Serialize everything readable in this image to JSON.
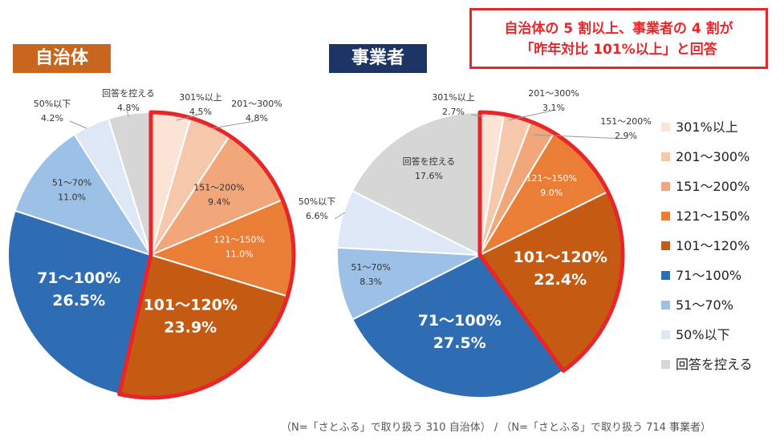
{
  "badges": {
    "left": "自治体",
    "right": "事業者"
  },
  "callout": {
    "line1": "自治体の 5 割以上、事業者の 4 割が",
    "line2": "「昨年対比 101%以上」と回答"
  },
  "footnote": "（N=「さとふる」で取り扱う 310 自治体）  /  （N=「さとふる」で取り扱う 714 事業者）",
  "legend": [
    {
      "label": "301%以上",
      "color": "#fbe3d6"
    },
    {
      "label": "201〜300%",
      "color": "#f6c8ab"
    },
    {
      "label": "151〜200%",
      "color": "#f1a77a"
    },
    {
      "label": "121〜150%",
      "color": "#ea7e36"
    },
    {
      "label": "101〜120%",
      "color": "#c55a12"
    },
    {
      "label": "71〜100%",
      "color": "#2e6cb4"
    },
    {
      "label": "51〜70%",
      "color": "#9dc0e6"
    },
    {
      "label": "50%以下",
      "color": "#dde7f5"
    },
    {
      "label": "回答を控える",
      "color": "#d6d6d6"
    }
  ],
  "chart_data": [
    {
      "type": "pie",
      "title": "自治体",
      "slices": [
        {
          "name": "301%以上",
          "value": 4.5,
          "label": "4.5%"
        },
        {
          "name": "201〜300%",
          "value": 4.8,
          "label": "4.8%"
        },
        {
          "name": "151〜200%",
          "value": 9.4,
          "label": "9.4%"
        },
        {
          "name": "121〜150%",
          "value": 11.0,
          "label": "11.0%"
        },
        {
          "name": "101〜120%",
          "value": 23.9,
          "label": "23.9%"
        },
        {
          "name": "71〜100%",
          "value": 26.5,
          "label": "26.5%"
        },
        {
          "name": "51〜70%",
          "value": 11.0,
          "label": "11.0%"
        },
        {
          "name": "50%以下",
          "value": 4.2,
          "label": "4.2%"
        },
        {
          "name": "回答を控える",
          "value": 4.8,
          "label": "4.8%"
        }
      ],
      "highlight_range": [
        "301%以上",
        "101〜120%"
      ]
    },
    {
      "type": "pie",
      "title": "事業者",
      "slices": [
        {
          "name": "301%以上",
          "value": 2.7,
          "label": "2.7%"
        },
        {
          "name": "201〜300%",
          "value": 3.1,
          "label": "3.1%"
        },
        {
          "name": "151〜200%",
          "value": 2.9,
          "label": "2.9%"
        },
        {
          "name": "121〜150%",
          "value": 9.0,
          "label": "9.0%"
        },
        {
          "name": "101〜120%",
          "value": 22.4,
          "label": "22.4%"
        },
        {
          "name": "71〜100%",
          "value": 27.5,
          "label": "27.5%"
        },
        {
          "name": "51〜70%",
          "value": 8.3,
          "label": "8.3%"
        },
        {
          "name": "50%以下",
          "value": 6.6,
          "label": "6.6%"
        },
        {
          "name": "回答を控える",
          "value": 17.6,
          "label": "17.6%"
        }
      ],
      "highlight_range": [
        "301%以上",
        "101〜120%"
      ]
    }
  ]
}
